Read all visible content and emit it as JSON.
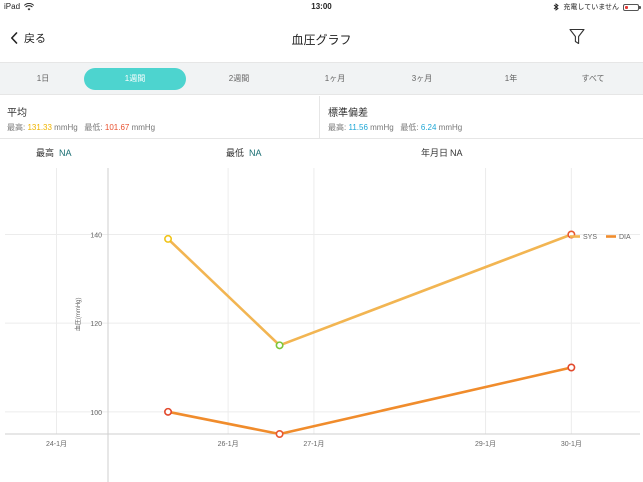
{
  "status_bar": {
    "device": "iPad",
    "time": "13:00",
    "charging": "充電していません",
    "icons": [
      "wifi-icon",
      "bluetooth-icon",
      "battery-icon"
    ]
  },
  "nav": {
    "back_label": "戻る",
    "title": "血圧グラフ",
    "filter_icon": "filter-icon"
  },
  "tabs": [
    {
      "label": "1日",
      "active": false
    },
    {
      "label": "1週間",
      "active": true
    },
    {
      "label": "2週間",
      "active": false
    },
    {
      "label": "1ヶ月",
      "active": false
    },
    {
      "label": "3ヶ月",
      "active": false
    },
    {
      "label": "1年",
      "active": false
    },
    {
      "label": "すべて",
      "active": false
    }
  ],
  "stats": {
    "mean": {
      "title": "平均",
      "high_label": "最高:",
      "high_value": "131.33",
      "high_color": "#f0b400",
      "low_label": "最低:",
      "low_value": "101.67",
      "low_color": "#e8502e",
      "unit": "mmHg"
    },
    "stddev": {
      "title": "標準偏差",
      "high_label": "最高:",
      "high_value": "11.56",
      "high_color": "#1ea7d6",
      "low_label": "最低:",
      "low_value": "6.24",
      "low_color": "#1ea7d6",
      "unit": "mmHg"
    }
  },
  "selection": {
    "high_label": "最高",
    "high_value": "NA",
    "low_label": "最低",
    "low_value": "NA",
    "date_label": "年月日",
    "date_value": "NA"
  },
  "chart_data": {
    "type": "line",
    "ylabel": "血圧(mmHg)",
    "ylim": [
      95,
      155
    ],
    "y_ticks": [
      100,
      120,
      140
    ],
    "x_tick_labels": [
      "24-1月",
      "26-1月",
      "27-1月",
      "29-1月",
      "30-1月"
    ],
    "x_tick_days": [
      24,
      26,
      27,
      29,
      30
    ],
    "x_domain": [
      23.4,
      30.8
    ],
    "legend_position": "top-right",
    "series": [
      {
        "name": "SYS",
        "color": "#f2b552",
        "x": [
          25.3,
          26.6,
          30.0
        ],
        "y": [
          139,
          115,
          140
        ],
        "point_colors": [
          "#f0c41b",
          "#7cc63a",
          "#e8572f"
        ]
      },
      {
        "name": "DIA",
        "color": "#f08c2c",
        "x": [
          25.3,
          26.6,
          30.0
        ],
        "y": [
          100,
          95,
          110
        ],
        "point_colors": [
          "#e2492c",
          "#e8572f",
          "#e2492c"
        ]
      }
    ]
  }
}
